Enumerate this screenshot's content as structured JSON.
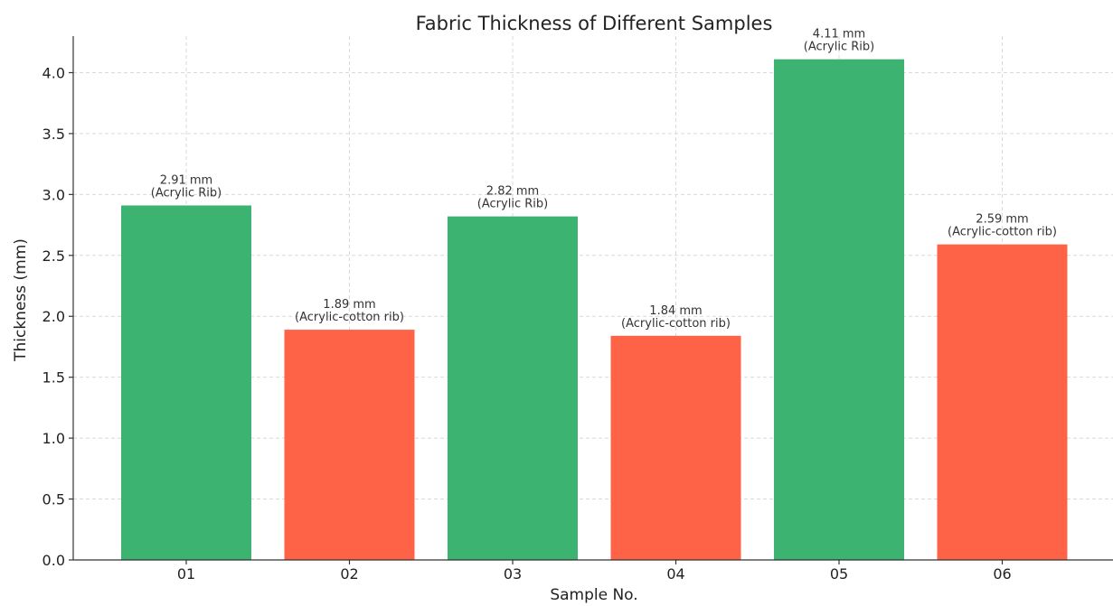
{
  "chart_data": {
    "type": "bar",
    "title": "Fabric Thickness of Different Samples",
    "xlabel": "Sample No.",
    "ylabel": "Thickness (mm)",
    "ylim": [
      0,
      4.3
    ],
    "yticks": [
      "0.0",
      "0.5",
      "1.0",
      "1.5",
      "2.0",
      "2.5",
      "3.0",
      "3.5",
      "4.0"
    ],
    "grid": true,
    "categories": [
      "01",
      "02",
      "03",
      "04",
      "05",
      "06"
    ],
    "values": [
      2.91,
      1.89,
      2.82,
      1.84,
      4.11,
      2.59
    ],
    "value_labels": [
      "2.91 mm",
      "1.89 mm",
      "2.82 mm",
      "1.84 mm",
      "4.11 mm",
      "2.59 mm"
    ],
    "fabric_labels": [
      "(Acrylic Rib)",
      "(Acrylic-cotton rib)",
      "(Acrylic Rib)",
      "(Acrylic-cotton rib)",
      "(Acrylic Rib)",
      "(Acrylic-cotton rib)"
    ],
    "colors": {
      "Acrylic Rib": "#3cb371",
      "Acrylic-cotton rib": "#ff6347"
    },
    "bar_colors": [
      "#3cb371",
      "#ff6347",
      "#3cb371",
      "#ff6347",
      "#3cb371",
      "#ff6347"
    ]
  }
}
